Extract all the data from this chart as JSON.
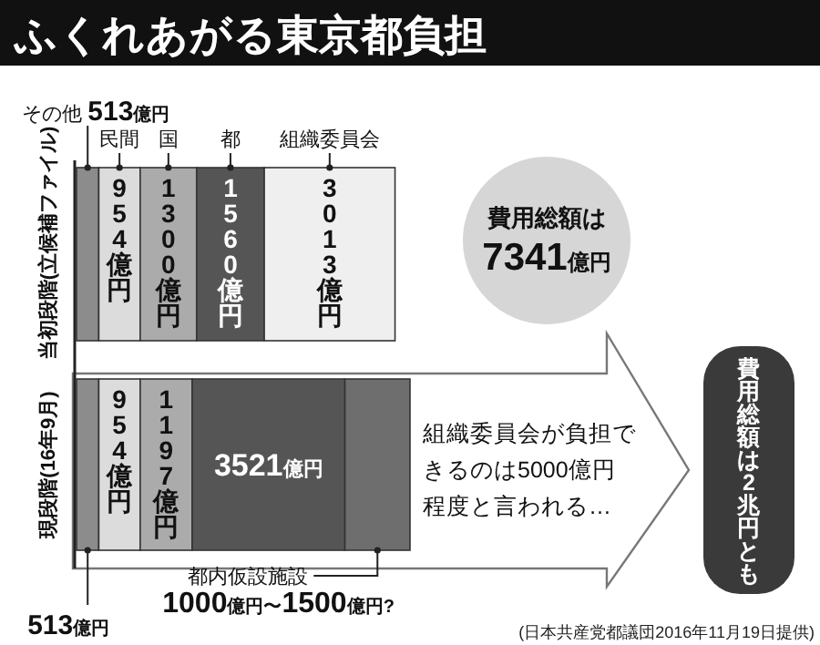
{
  "chart_data": {
    "type": "bar",
    "orientation": "horizontal",
    "stacked": true,
    "title": "ふくれあがる東京都負担",
    "categories": [
      "当初段階(立候補ファイル)",
      "現段階(16年9月)"
    ],
    "series": [
      {
        "name": "その他",
        "color": "#8c8c8c",
        "values": [
          513,
          513
        ],
        "value_labels": [
          "513億円",
          "513億円"
        ]
      },
      {
        "name": "民間",
        "color": "#dcdcdc",
        "values": [
          954,
          954
        ],
        "value_labels": [
          "954億円",
          "954億円"
        ]
      },
      {
        "name": "国",
        "color": "#ababab",
        "values": [
          1300,
          1197
        ],
        "value_labels": [
          "1300億円",
          "1197億円"
        ]
      },
      {
        "name": "都",
        "color": "#555555",
        "values": [
          1560,
          3521
        ],
        "value_labels": [
          "1560億円",
          "3521億円"
        ]
      },
      {
        "name": "組織委員会",
        "color": "#efefef",
        "values": [
          3013,
          null
        ],
        "value_labels": [
          "3013億円",
          null
        ]
      },
      {
        "name": "都内仮設施設",
        "color": "#6e6e6e",
        "values": [
          null,
          1500
        ],
        "value_labels": [
          null,
          "1000億円〜1500億円?"
        ]
      }
    ],
    "annotations": [
      "費用総額は7341億円",
      "組織委員会が負担できるのは5000億円程度と言われる…",
      "費用総額は2兆円とも",
      "(日本共産党都議団2016年11月19日提供)"
    ]
  }
}
